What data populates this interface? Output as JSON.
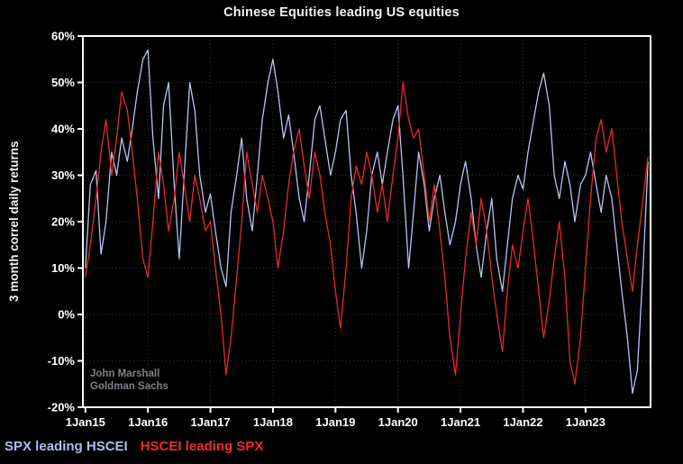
{
  "title": "Chinese Equities leading US equities",
  "watermark": {
    "line1": "John Marshall",
    "line2": "Goldman Sachs"
  },
  "legend": [
    {
      "label": "SPX leading HSCEI",
      "color": "#aebdf0"
    },
    {
      "label": "HSCEI leading SPX",
      "color": "#ef2b2d"
    }
  ],
  "chart_data": {
    "type": "line",
    "title": "Chinese Equities leading US equities",
    "xlabel": "",
    "ylabel": "3 month correl daily returns",
    "ylim": [
      -20,
      60
    ],
    "xlim": [
      2014.96,
      2024.04
    ],
    "grid": "dotted",
    "legend_position": "bottom-left",
    "y_ticks": [
      {
        "value": 60,
        "label": "60%"
      },
      {
        "value": 50,
        "label": "50%"
      },
      {
        "value": 40,
        "label": "40%"
      },
      {
        "value": 30,
        "label": "30%"
      },
      {
        "value": 20,
        "label": "20%"
      },
      {
        "value": 10,
        "label": "10%"
      },
      {
        "value": 0,
        "label": "0%"
      },
      {
        "value": -10,
        "label": "-10%"
      },
      {
        "value": -20,
        "label": "-20%"
      }
    ],
    "x_ticks": [
      {
        "value": 2015,
        "label": "1Jan15"
      },
      {
        "value": 2016,
        "label": "1Jan16"
      },
      {
        "value": 2017,
        "label": "1Jan17"
      },
      {
        "value": 2018,
        "label": "1Jan18"
      },
      {
        "value": 2019,
        "label": "1Jan19"
      },
      {
        "value": 2020,
        "label": "1Jan20"
      },
      {
        "value": 2021,
        "label": "1Jan21"
      },
      {
        "value": 2022,
        "label": "1Jan22"
      },
      {
        "value": 2023,
        "label": "1Jan23"
      }
    ],
    "x": [
      2015.0,
      2015.08,
      2015.17,
      2015.25,
      2015.33,
      2015.42,
      2015.5,
      2015.58,
      2015.67,
      2015.75,
      2015.83,
      2015.92,
      2016.0,
      2016.08,
      2016.17,
      2016.25,
      2016.33,
      2016.42,
      2016.5,
      2016.58,
      2016.67,
      2016.75,
      2016.83,
      2016.92,
      2017.0,
      2017.08,
      2017.17,
      2017.25,
      2017.33,
      2017.42,
      2017.5,
      2017.58,
      2017.67,
      2017.75,
      2017.83,
      2017.92,
      2018.0,
      2018.08,
      2018.17,
      2018.25,
      2018.33,
      2018.42,
      2018.5,
      2018.58,
      2018.67,
      2018.75,
      2018.83,
      2018.92,
      2019.0,
      2019.08,
      2019.17,
      2019.25,
      2019.33,
      2019.42,
      2019.5,
      2019.58,
      2019.67,
      2019.75,
      2019.83,
      2019.92,
      2020.0,
      2020.08,
      2020.17,
      2020.25,
      2020.33,
      2020.42,
      2020.5,
      2020.58,
      2020.67,
      2020.75,
      2020.83,
      2020.92,
      2021.0,
      2021.08,
      2021.17,
      2021.25,
      2021.33,
      2021.42,
      2021.5,
      2021.58,
      2021.67,
      2021.75,
      2021.83,
      2021.92,
      2022.0,
      2022.08,
      2022.17,
      2022.25,
      2022.33,
      2022.42,
      2022.5,
      2022.58,
      2022.67,
      2022.75,
      2022.83,
      2022.92,
      2023.0,
      2023.08,
      2023.17,
      2023.25,
      2023.33,
      2023.42,
      2023.5,
      2023.58,
      2023.67,
      2023.75,
      2023.83,
      2023.92,
      2024.0
    ],
    "series": [
      {
        "name": "SPX leading HSCEI",
        "color": "#b7c3ef",
        "values": [
          10,
          28,
          31,
          13,
          20,
          35,
          30,
          38,
          33,
          40,
          48,
          55,
          57,
          38,
          25,
          45,
          50,
          28,
          12,
          30,
          50,
          44,
          30,
          22,
          26,
          18,
          10,
          6,
          22,
          30,
          38,
          25,
          18,
          30,
          42,
          50,
          55,
          48,
          38,
          43,
          35,
          25,
          20,
          30,
          42,
          45,
          38,
          30,
          35,
          42,
          44,
          30,
          22,
          10,
          18,
          30,
          35,
          28,
          35,
          42,
          45,
          30,
          10,
          22,
          35,
          28,
          18,
          25,
          30,
          22,
          15,
          20,
          28,
          33,
          25,
          15,
          8,
          18,
          25,
          12,
          5,
          15,
          25,
          30,
          27,
          35,
          42,
          48,
          52,
          45,
          30,
          25,
          33,
          28,
          20,
          28,
          30,
          35,
          28,
          22,
          30,
          25,
          15,
          5,
          -5,
          -17,
          -12,
          10,
          33
        ]
      },
      {
        "name": "HSCEI leading SPX",
        "color": "#e62a2c",
        "values": [
          8,
          15,
          25,
          35,
          42,
          30,
          38,
          48,
          44,
          35,
          25,
          12,
          8,
          20,
          35,
          28,
          18,
          25,
          35,
          28,
          20,
          30,
          25,
          18,
          20,
          10,
          0,
          -13,
          -5,
          8,
          20,
          35,
          28,
          22,
          30,
          25,
          20,
          10,
          18,
          28,
          35,
          40,
          32,
          25,
          35,
          30,
          22,
          15,
          5,
          -3,
          10,
          25,
          32,
          28,
          35,
          30,
          22,
          28,
          20,
          30,
          38,
          50,
          42,
          38,
          40,
          30,
          20,
          28,
          18,
          8,
          -5,
          -13,
          0,
          12,
          22,
          15,
          25,
          18,
          8,
          0,
          -8,
          5,
          15,
          10,
          18,
          25,
          15,
          5,
          -5,
          3,
          12,
          20,
          8,
          -10,
          -15,
          -5,
          10,
          25,
          38,
          42,
          35,
          40,
          30,
          20,
          12,
          5,
          15,
          25,
          34
        ]
      }
    ]
  }
}
